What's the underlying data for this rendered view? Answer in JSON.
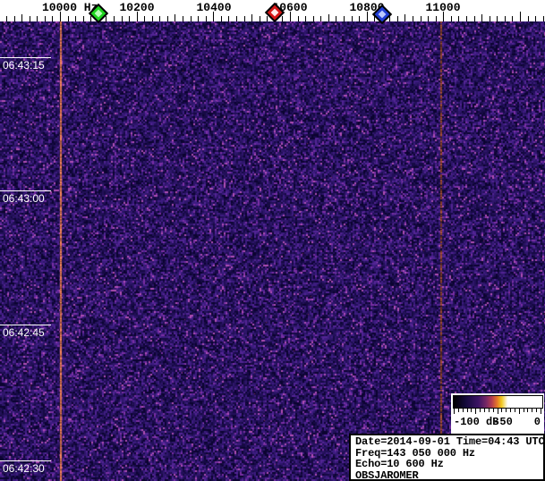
{
  "ruler": {
    "labels": [
      "10000 Hz",
      "10200",
      "10400",
      "10600",
      "10800",
      "11000"
    ]
  },
  "markers": [
    {
      "name": "green-marker",
      "color": "#1fd41f",
      "highlight": "#b6ffb6"
    },
    {
      "name": "red-marker",
      "color": "#d41717",
      "highlight": "#ffecec"
    },
    {
      "name": "blue-marker",
      "color": "#1f3cd4",
      "highlight": "#bcc9ff"
    }
  ],
  "time_axis": {
    "labels": [
      "06:43:15",
      "06:43:00",
      "06:42:45",
      "06:42:30"
    ]
  },
  "legend": {
    "min": "-100 dB",
    "mid": "-50",
    "max": "0"
  },
  "info": {
    "lines": [
      "Date=2014-09-01 Time=04:43 UTC",
      "Freq=143 050 000 Hz",
      "Echo=10 600 Hz",
      "OBSJAROMER"
    ]
  },
  "colors": {
    "ruler_bg": "#ffffff",
    "tick": "#000000",
    "time_text": "#ffffff",
    "noise_palette": [
      "#0b0430",
      "#160a44",
      "#221058",
      "#2f166b",
      "#3d1c80",
      "#522494",
      "#7a2fa4",
      "#b04fb4"
    ],
    "noise_speck": "#c03840",
    "carrier_left": "#d4714b",
    "carrier_right": "#a04c30",
    "colormap": [
      "#000000",
      "#140a3c",
      "#3c1464",
      "#782864",
      "#b43c50",
      "#e67828",
      "#f0c81e",
      "#ffffff"
    ]
  }
}
